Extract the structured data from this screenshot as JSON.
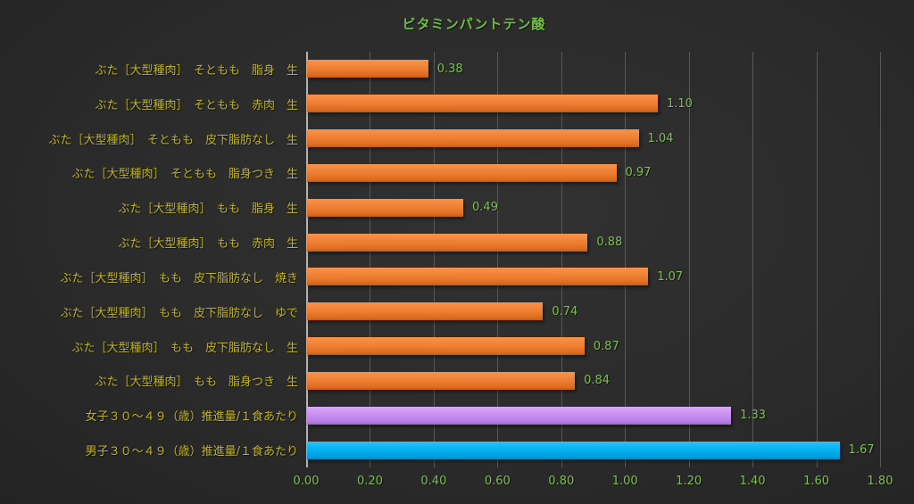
{
  "chart_data": {
    "type": "bar",
    "orientation": "horizontal",
    "title": "ビタミンパントテン酸",
    "categories": [
      "ぶた［大型種肉］　そともも　脂身　生",
      "ぶた［大型種肉］　そともも　赤肉　生",
      "ぶた［大型種肉］　そともも　皮下脂肪なし　生",
      "ぶた［大型種肉］　そともも　脂身つき　生",
      "ぶた［大型種肉］　もも　脂身　生",
      "ぶた［大型種肉］　もも　赤肉　生",
      "ぶた［大型種肉］　もも　皮下脂肪なし　焼き",
      "ぶた［大型種肉］　もも　皮下脂肪なし　ゆで",
      "ぶた［大型種肉］　もも　皮下脂肪なし　生",
      "ぶた［大型種肉］　もも　脂身つき　生",
      "女子３０～４９（歳）推進量/１食あたり",
      "男子３０～４９（歳）推進量/１食あたり"
    ],
    "values": [
      0.38,
      1.1,
      1.04,
      0.97,
      0.49,
      0.88,
      1.07,
      0.74,
      0.87,
      0.84,
      1.33,
      1.67
    ],
    "value_labels": [
      "0.38",
      "1.10",
      "1.04",
      "0.97",
      "0.49",
      "0.88",
      "1.07",
      "0.74",
      "0.87",
      "0.84",
      "1.33",
      "1.67"
    ],
    "bar_styles": [
      "orange",
      "orange",
      "orange",
      "orange",
      "orange",
      "orange",
      "orange",
      "orange",
      "orange",
      "orange",
      "purple",
      "blue"
    ],
    "xlim": [
      0,
      1.8
    ],
    "x_tick_values": [
      0,
      0.2,
      0.4,
      0.6,
      0.8,
      1.0,
      1.2,
      1.4,
      1.6,
      1.8
    ],
    "x_tick_labels": [
      "0.00",
      "0.20",
      "0.40",
      "0.60",
      "0.80",
      "1.00",
      "1.20",
      "1.40",
      "1.60",
      "1.80"
    ],
    "grid": true,
    "legend": false
  },
  "colors": {
    "background": "#2b2b2b",
    "title_text": "#6fbf44",
    "category_label_text": "#bdb226",
    "value_label_text": "#7ebd50",
    "axis_tick_text": "#7ebd50",
    "gridline": "#585858",
    "axis_line": "#b3b3b3",
    "bar_orange": "#ed7d31",
    "bar_purple": "#c88bf0",
    "bar_blue": "#00b0f0"
  }
}
